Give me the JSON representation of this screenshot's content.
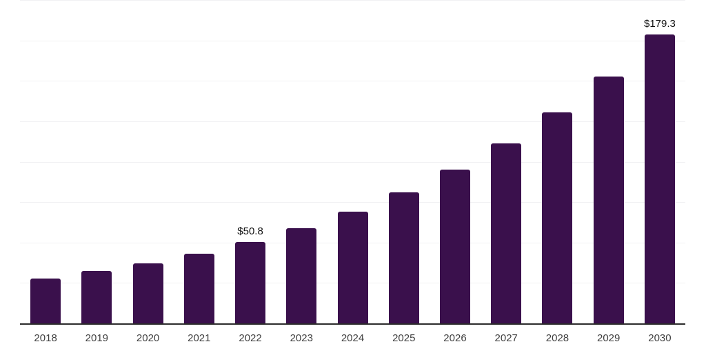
{
  "chart_data": {
    "type": "bar",
    "title": "",
    "xlabel": "",
    "ylabel": "",
    "categories": [
      "2018",
      "2019",
      "2020",
      "2021",
      "2022",
      "2023",
      "2024",
      "2025",
      "2026",
      "2027",
      "2028",
      "2029",
      "2030"
    ],
    "values": [
      28.3,
      32.7,
      37.5,
      43.4,
      50.8,
      59.5,
      69.6,
      81.5,
      95.4,
      111.7,
      130.8,
      153.1,
      179.3
    ],
    "data_labels": {
      "2022": "$50.8",
      "2030": "$179.3"
    },
    "ylim": [
      0,
      200
    ],
    "gridline_step": 25,
    "grid": true,
    "legend": false,
    "y_tick_labels_visible": false,
    "colors": {
      "bar": "#3a104c",
      "gridline": "#f1f1f3",
      "axis_line": "#2b2b2b",
      "tick_label": "#3f3f3f",
      "value_label": "#111111",
      "background": "#ffffff"
    }
  }
}
